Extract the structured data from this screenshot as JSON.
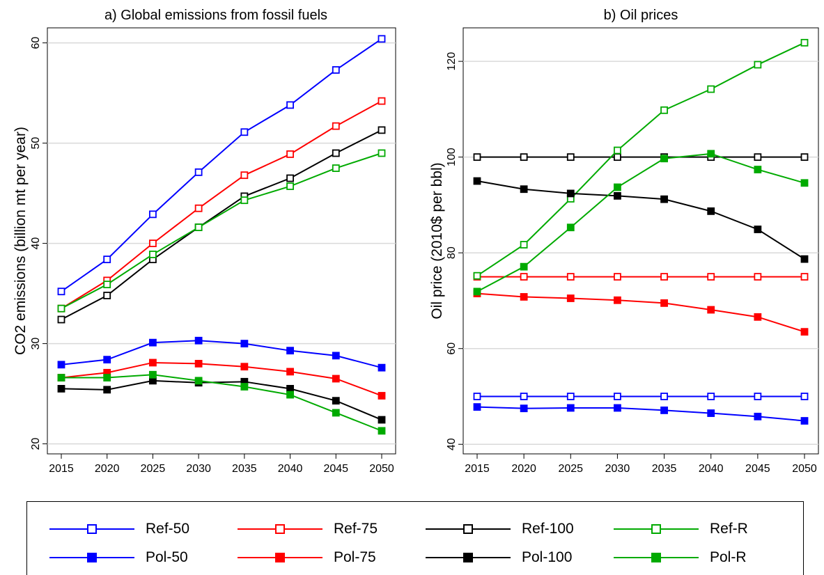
{
  "chart_data": [
    {
      "type": "line",
      "title": "a) Global emissions from fossil fuels",
      "xlabel": "",
      "ylabel": "CO2 emissions (billion mt per year)",
      "x": [
        2015,
        2020,
        2025,
        2030,
        2035,
        2040,
        2045,
        2050
      ],
      "x_ticks": [
        "2015",
        "2020",
        "2025",
        "2030",
        "2035",
        "2040",
        "2045",
        "2050"
      ],
      "ylim": [
        19,
        61.5
      ],
      "y_ticks": [
        20,
        30,
        40,
        50,
        60
      ],
      "grid": "horizontal",
      "series": [
        {
          "name": "Ref-50",
          "color": "#0000ff",
          "marker": "hollow-square",
          "values": [
            35.2,
            38.4,
            42.9,
            47.1,
            51.1,
            53.8,
            57.3,
            60.4
          ]
        },
        {
          "name": "Ref-75",
          "color": "#ff0000",
          "marker": "hollow-square",
          "values": [
            33.5,
            36.3,
            40.0,
            43.5,
            46.8,
            48.9,
            51.7,
            54.2
          ]
        },
        {
          "name": "Ref-100",
          "color": "#000000",
          "marker": "hollow-square",
          "values": [
            32.4,
            34.8,
            38.4,
            41.6,
            44.7,
            46.5,
            49.0,
            51.3
          ]
        },
        {
          "name": "Ref-R",
          "color": "#00aa00",
          "marker": "hollow-square",
          "values": [
            33.5,
            35.9,
            38.9,
            41.6,
            44.3,
            45.7,
            47.5,
            49.0
          ]
        },
        {
          "name": "Pol-50",
          "color": "#0000ff",
          "marker": "filled-square",
          "values": [
            27.9,
            28.4,
            30.1,
            30.3,
            30.0,
            29.3,
            28.8,
            27.6
          ]
        },
        {
          "name": "Pol-75",
          "color": "#ff0000",
          "marker": "filled-square",
          "values": [
            26.6,
            27.1,
            28.1,
            28.0,
            27.7,
            27.2,
            26.5,
            24.8
          ]
        },
        {
          "name": "Pol-100",
          "color": "#000000",
          "marker": "filled-square",
          "values": [
            25.5,
            25.4,
            26.3,
            26.1,
            26.2,
            25.5,
            24.3,
            22.4
          ]
        },
        {
          "name": "Pol-R",
          "color": "#00aa00",
          "marker": "filled-square",
          "values": [
            26.6,
            26.6,
            26.9,
            26.3,
            25.7,
            24.9,
            23.1,
            21.3
          ]
        }
      ]
    },
    {
      "type": "line",
      "title": "b) Oil prices",
      "xlabel": "",
      "ylabel": "Oil price (2010$ per bbl)",
      "x": [
        2015,
        2020,
        2025,
        2030,
        2035,
        2040,
        2045,
        2050
      ],
      "x_ticks": [
        "2015",
        "2020",
        "2025",
        "2030",
        "2035",
        "2040",
        "2045",
        "2050"
      ],
      "ylim": [
        38,
        127
      ],
      "y_ticks": [
        40,
        60,
        80,
        100,
        120
      ],
      "grid": "horizontal",
      "series": [
        {
          "name": "Ref-50",
          "color": "#0000ff",
          "marker": "hollow-square",
          "values": [
            50,
            50,
            50,
            50,
            50,
            50,
            50,
            50
          ]
        },
        {
          "name": "Ref-75",
          "color": "#ff0000",
          "marker": "hollow-square",
          "values": [
            75,
            75,
            75,
            75,
            75,
            75,
            75,
            75
          ]
        },
        {
          "name": "Ref-100",
          "color": "#000000",
          "marker": "hollow-square",
          "values": [
            100,
            100,
            100,
            100,
            100,
            100,
            100,
            100
          ]
        },
        {
          "name": "Ref-R",
          "color": "#00aa00",
          "marker": "hollow-square",
          "values": [
            75.2,
            81.7,
            91.3,
            101.4,
            109.8,
            114.2,
            119.3,
            123.9
          ]
        },
        {
          "name": "Pol-50",
          "color": "#0000ff",
          "marker": "filled-square",
          "values": [
            47.8,
            47.5,
            47.6,
            47.6,
            47.1,
            46.5,
            45.8,
            44.9
          ]
        },
        {
          "name": "Pol-75",
          "color": "#ff0000",
          "marker": "filled-square",
          "values": [
            71.5,
            70.8,
            70.5,
            70.1,
            69.5,
            68.1,
            66.6,
            63.5
          ]
        },
        {
          "name": "Pol-100",
          "color": "#000000",
          "marker": "filled-square",
          "values": [
            95.0,
            93.3,
            92.4,
            91.9,
            91.2,
            88.7,
            84.9,
            78.7
          ]
        },
        {
          "name": "Pol-R",
          "color": "#00aa00",
          "marker": "filled-square",
          "values": [
            71.9,
            77.1,
            85.3,
            93.7,
            99.7,
            100.7,
            97.4,
            94.6
          ]
        }
      ]
    }
  ],
  "legend": {
    "placement": "bottom",
    "items": [
      {
        "label": "Ref-50",
        "color": "#0000ff",
        "marker": "hollow-square"
      },
      {
        "label": "Ref-75",
        "color": "#ff0000",
        "marker": "hollow-square"
      },
      {
        "label": "Ref-100",
        "color": "#000000",
        "marker": "hollow-square"
      },
      {
        "label": "Ref-R",
        "color": "#00aa00",
        "marker": "hollow-square"
      },
      {
        "label": "Pol-50",
        "color": "#0000ff",
        "marker": "filled-square"
      },
      {
        "label": "Pol-75",
        "color": "#ff0000",
        "marker": "filled-square"
      },
      {
        "label": "Pol-100",
        "color": "#000000",
        "marker": "filled-square"
      },
      {
        "label": "Pol-R",
        "color": "#00aa00",
        "marker": "filled-square"
      }
    ]
  }
}
